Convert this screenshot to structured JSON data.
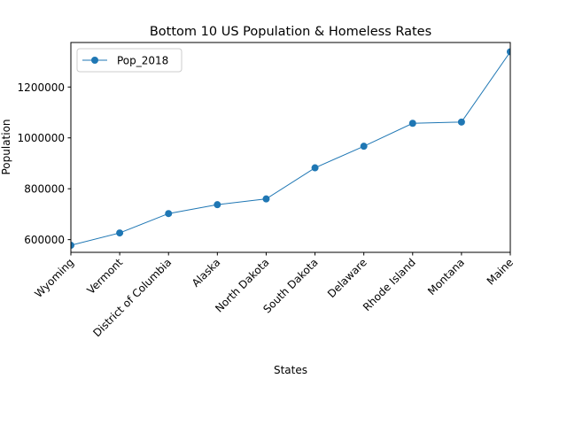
{
  "chart_data": {
    "type": "line",
    "title": "Bottom 10 US Population & Homeless Rates",
    "xlabel": "States",
    "ylabel": "Population",
    "categories": [
      "Wyoming",
      "Vermont",
      "District of Columbia",
      "Alaska",
      "North Dakota",
      "South Dakota",
      "Delaware",
      "Rhode Island",
      "Montana",
      "Maine"
    ],
    "series": [
      {
        "name": "Pop_2018",
        "color": "#1f77b4",
        "marker": "circle",
        "values": [
          577737,
          626299,
          702455,
          737438,
          760077,
          882235,
          967171,
          1057315,
          1062305,
          1338404
        ]
      }
    ],
    "ylim": [
      550000,
      1375000
    ],
    "yticks": [
      600000,
      800000,
      1000000,
      1200000
    ],
    "ytick_labels": [
      "600000",
      "800000",
      "1000000",
      "1200000"
    ],
    "grid": false,
    "legend": "top-left"
  }
}
